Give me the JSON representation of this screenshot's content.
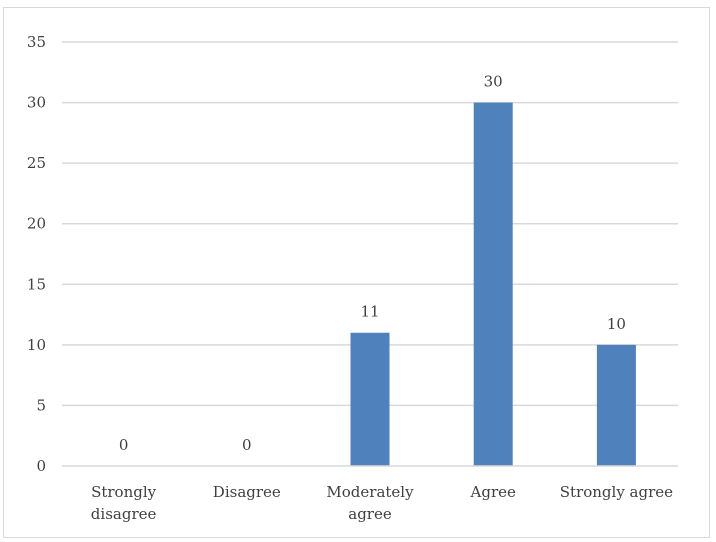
{
  "chart_data": {
    "type": "bar",
    "categories": [
      "Strongly disagree",
      "Disagree",
      "Moderately agree",
      "Agree",
      "Strongly agree"
    ],
    "category_lines": [
      [
        "Strongly",
        "disagree"
      ],
      [
        "Disagree"
      ],
      [
        "Moderately",
        "agree"
      ],
      [
        "Agree"
      ],
      [
        "Strongly agree"
      ]
    ],
    "values": [
      0,
      0,
      11,
      30,
      10
    ],
    "data_labels": [
      "0",
      "0",
      "11",
      "30",
      "10"
    ],
    "ylim": [
      0,
      35
    ],
    "yticks": [
      0,
      5,
      10,
      15,
      20,
      25,
      30,
      35
    ],
    "ytick_labels": [
      "0",
      "5",
      "10",
      "15",
      "20",
      "25",
      "30",
      "35"
    ],
    "title": "",
    "xlabel": "",
    "ylabel": "",
    "grid": true,
    "bar_color": "#4f81bd"
  }
}
